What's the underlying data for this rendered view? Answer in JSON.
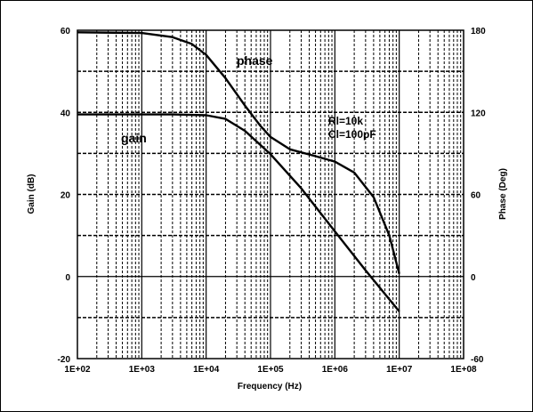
{
  "chart_data": {
    "type": "line",
    "xlabel": "Frequency (Hz)",
    "ylabel_left": "Gain (dB)",
    "ylabel_right": "Phase (Deg)",
    "x_scale": "log",
    "xlim": [
      100,
      100000000
    ],
    "ylim_left": [
      -20,
      60
    ],
    "ylim_right": [
      -60,
      180
    ],
    "x_ticks": [
      {
        "value": 100,
        "label": "1E+02"
      },
      {
        "value": 1000,
        "label": "1E+03"
      },
      {
        "value": 10000,
        "label": "1E+04"
      },
      {
        "value": 100000,
        "label": "1E+05"
      },
      {
        "value": 1000000,
        "label": "1E+06"
      },
      {
        "value": 10000000,
        "label": "1E+07"
      },
      {
        "value": 100000000,
        "label": "1E+08"
      }
    ],
    "y_ticks_left": [
      {
        "value": 60,
        "label": "60"
      },
      {
        "value": 40,
        "label": "40"
      },
      {
        "value": 20,
        "label": "20"
      },
      {
        "value": 0,
        "label": "0"
      },
      {
        "value": -20,
        "label": "-20"
      }
    ],
    "y_ticks_right": [
      {
        "value": 180,
        "label": "180"
      },
      {
        "value": 120,
        "label": "120"
      },
      {
        "value": 60,
        "label": "60"
      },
      {
        "value": 0,
        "label": "0"
      },
      {
        "value": -60,
        "label": "-60"
      }
    ],
    "grid": true,
    "series": [
      {
        "name": "gain",
        "axis": "left",
        "x": [
          100,
          1000,
          3000,
          10000,
          20000,
          40000,
          100000,
          300000,
          1000000,
          3000000,
          10000000
        ],
        "y": [
          39.5,
          39.5,
          39.5,
          39.3,
          38.4,
          35.5,
          29.8,
          21.5,
          11.0,
          1.5,
          -8.5
        ]
      },
      {
        "name": "phase",
        "axis": "right",
        "x": [
          100,
          1000,
          3000,
          6000,
          10000,
          20000,
          40000,
          70000,
          100000,
          200000,
          500000,
          1000000,
          2000000,
          4000000,
          7000000,
          10000000
        ],
        "y": [
          178.5,
          178,
          175,
          170,
          162,
          145,
          125,
          110,
          102,
          93,
          88,
          84,
          76,
          58,
          30,
          2
        ]
      }
    ],
    "annotations": {
      "phase": "phase",
      "gain": "gain",
      "rl": "Rl=10k",
      "cl": "Cl=100pF"
    }
  },
  "colors": {
    "line": "#000000",
    "grid": "#000000",
    "background": "#ffffff"
  }
}
